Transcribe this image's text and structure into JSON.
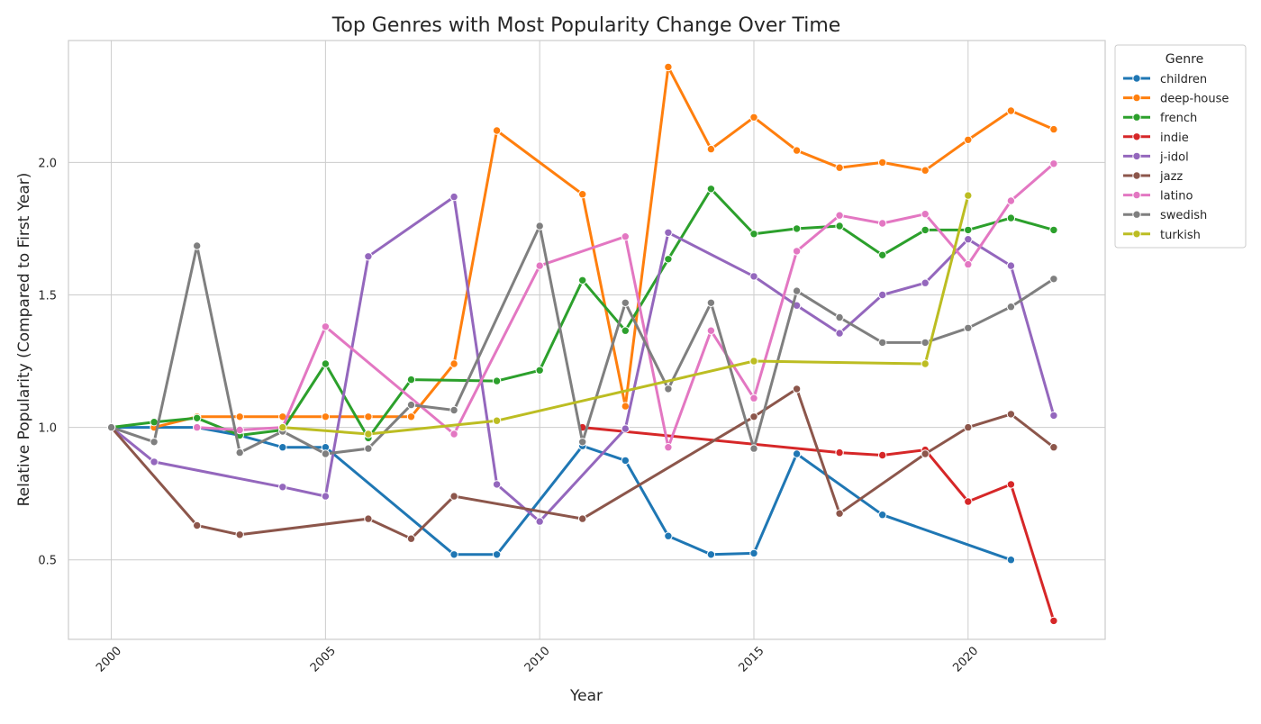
{
  "chart_data": {
    "type": "line",
    "title": "Top Genres with Most Popularity Change Over Time",
    "xlabel": "Year",
    "ylabel": "Relative Popularity (Compared to First Year)",
    "xlim": [
      1999.0,
      2023.2
    ],
    "ylim": [
      0.2,
      2.46
    ],
    "x_ticks": [
      2000,
      2005,
      2010,
      2015,
      2020
    ],
    "x_tick_labels": [
      "2000",
      "2005",
      "2010",
      "2015",
      "2020"
    ],
    "y_ticks": [
      0.5,
      1.0,
      1.5,
      2.0
    ],
    "y_tick_labels": [
      "0.5",
      "1.0",
      "1.5",
      "2.0"
    ],
    "grid": true,
    "legend": {
      "title": "Genre",
      "placement": "outside-top-right"
    },
    "series": [
      {
        "name": "children",
        "color": "#1f77b4",
        "points": [
          [
            2000,
            1.0
          ],
          [
            2002,
            1.0
          ],
          [
            2003,
            0.97
          ],
          [
            2004,
            0.925
          ],
          [
            2005,
            0.925
          ],
          [
            2008,
            0.52
          ],
          [
            2009,
            0.52
          ],
          [
            2011,
            0.93
          ],
          [
            2012,
            0.875
          ],
          [
            2013,
            0.59
          ],
          [
            2014,
            0.52
          ],
          [
            2015,
            0.525
          ],
          [
            2016,
            0.9
          ],
          [
            2018,
            0.67
          ],
          [
            2021,
            0.5
          ]
        ]
      },
      {
        "name": "deep-house",
        "color": "#ff7f0e",
        "points": [
          [
            2001,
            1.0
          ],
          [
            2002,
            1.04
          ],
          [
            2003,
            1.04
          ],
          [
            2004,
            1.04
          ],
          [
            2005,
            1.04
          ],
          [
            2006,
            1.04
          ],
          [
            2007,
            1.04
          ],
          [
            2008,
            1.24
          ],
          [
            2009,
            2.12
          ],
          [
            2011,
            1.88
          ],
          [
            2012,
            1.08
          ],
          [
            2013,
            2.36
          ],
          [
            2014,
            2.05
          ],
          [
            2015,
            2.17
          ],
          [
            2016,
            2.045
          ],
          [
            2017,
            1.98
          ],
          [
            2018,
            2.0
          ],
          [
            2019,
            1.97
          ],
          [
            2020,
            2.085
          ],
          [
            2021,
            2.195
          ],
          [
            2022,
            2.125
          ]
        ]
      },
      {
        "name": "french",
        "color": "#2ca02c",
        "points": [
          [
            2000,
            1.0
          ],
          [
            2001,
            1.02
          ],
          [
            2002,
            1.035
          ],
          [
            2003,
            0.97
          ],
          [
            2004,
            0.99
          ],
          [
            2005,
            1.24
          ],
          [
            2006,
            0.96
          ],
          [
            2007,
            1.18
          ],
          [
            2009,
            1.175
          ],
          [
            2010,
            1.215
          ],
          [
            2011,
            1.555
          ],
          [
            2012,
            1.365
          ],
          [
            2013,
            1.635
          ],
          [
            2014,
            1.9
          ],
          [
            2015,
            1.73
          ],
          [
            2016,
            1.75
          ],
          [
            2017,
            1.76
          ],
          [
            2018,
            1.65
          ],
          [
            2019,
            1.745
          ],
          [
            2020,
            1.745
          ],
          [
            2021,
            1.79
          ],
          [
            2022,
            1.745
          ]
        ]
      },
      {
        "name": "indie",
        "color": "#d62728",
        "points": [
          [
            2011,
            1.0
          ],
          [
            2017,
            0.905
          ],
          [
            2018,
            0.895
          ],
          [
            2019,
            0.915
          ],
          [
            2020,
            0.72
          ],
          [
            2021,
            0.785
          ],
          [
            2022,
            0.27
          ]
        ]
      },
      {
        "name": "j-idol",
        "color": "#9467bd",
        "points": [
          [
            2000,
            1.0
          ],
          [
            2001,
            0.87
          ],
          [
            2004,
            0.775
          ],
          [
            2005,
            0.74
          ],
          [
            2006,
            1.645
          ],
          [
            2008,
            1.87
          ],
          [
            2009,
            0.785
          ],
          [
            2010,
            0.645
          ],
          [
            2012,
            0.995
          ],
          [
            2013,
            1.735
          ],
          [
            2015,
            1.57
          ],
          [
            2016,
            1.46
          ],
          [
            2017,
            1.355
          ],
          [
            2018,
            1.5
          ],
          [
            2019,
            1.545
          ],
          [
            2020,
            1.71
          ],
          [
            2021,
            1.61
          ],
          [
            2022,
            1.045
          ]
        ]
      },
      {
        "name": "jazz",
        "color": "#8c564b",
        "points": [
          [
            2000,
            1.0
          ],
          [
            2002,
            0.63
          ],
          [
            2003,
            0.595
          ],
          [
            2006,
            0.655
          ],
          [
            2007,
            0.58
          ],
          [
            2008,
            0.74
          ],
          [
            2011,
            0.655
          ],
          [
            2015,
            1.04
          ],
          [
            2016,
            1.145
          ],
          [
            2017,
            0.675
          ],
          [
            2019,
            0.9
          ],
          [
            2020,
            1.0
          ],
          [
            2021,
            1.05
          ],
          [
            2022,
            0.925
          ]
        ]
      },
      {
        "name": "latino",
        "color": "#e377c2",
        "points": [
          [
            2002,
            1.0
          ],
          [
            2003,
            0.99
          ],
          [
            2004,
            1.0
          ],
          [
            2005,
            1.38
          ],
          [
            2008,
            0.975
          ],
          [
            2010,
            1.61
          ],
          [
            2012,
            1.72
          ],
          [
            2013,
            0.925
          ],
          [
            2014,
            1.365
          ],
          [
            2015,
            1.11
          ],
          [
            2016,
            1.665
          ],
          [
            2017,
            1.8
          ],
          [
            2018,
            1.77
          ],
          [
            2019,
            1.805
          ],
          [
            2020,
            1.615
          ],
          [
            2021,
            1.855
          ],
          [
            2022,
            1.995
          ]
        ]
      },
      {
        "name": "swedish",
        "color": "#7f7f7f",
        "points": [
          [
            2000,
            1.0
          ],
          [
            2001,
            0.945
          ],
          [
            2002,
            1.685
          ],
          [
            2003,
            0.905
          ],
          [
            2004,
            0.985
          ],
          [
            2005,
            0.9
          ],
          [
            2006,
            0.92
          ],
          [
            2007,
            1.085
          ],
          [
            2008,
            1.065
          ],
          [
            2010,
            1.76
          ],
          [
            2011,
            0.945
          ],
          [
            2012,
            1.47
          ],
          [
            2013,
            1.145
          ],
          [
            2014,
            1.47
          ],
          [
            2015,
            0.92
          ],
          [
            2016,
            1.515
          ],
          [
            2017,
            1.415
          ],
          [
            2018,
            1.32
          ],
          [
            2019,
            1.32
          ],
          [
            2020,
            1.375
          ],
          [
            2021,
            1.455
          ],
          [
            2022,
            1.56
          ]
        ]
      },
      {
        "name": "turkish",
        "color": "#bcbd22",
        "points": [
          [
            2004,
            1.0
          ],
          [
            2006,
            0.975
          ],
          [
            2009,
            1.025
          ],
          [
            2015,
            1.25
          ],
          [
            2019,
            1.24
          ],
          [
            2020,
            1.875
          ]
        ]
      }
    ]
  }
}
